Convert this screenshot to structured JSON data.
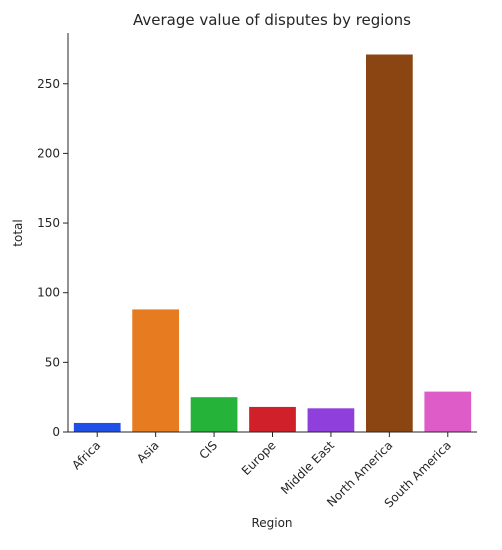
{
  "chart_data": {
    "type": "bar",
    "title": "Average value of disputes by regions",
    "xlabel": "Region",
    "ylabel": "total",
    "categories": [
      "Africa",
      "Asia",
      "CIS",
      "Europe",
      "Middle East",
      "North America",
      "South America"
    ],
    "values": [
      6.5,
      88,
      25,
      18,
      17,
      271,
      29
    ],
    "colors": [
      "#1f4fe6",
      "#e67c1f",
      "#25b33a",
      "#d0202a",
      "#8f3fdc",
      "#8b4513",
      "#de5cc8"
    ],
    "yticks": [
      0,
      50,
      100,
      150,
      200,
      250
    ],
    "ylim": [
      0,
      285
    ],
    "grid": false,
    "legend": "none"
  }
}
